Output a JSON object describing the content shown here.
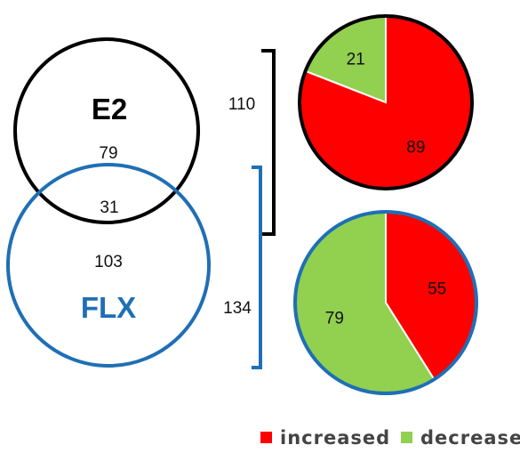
{
  "venn": {
    "set_a": {
      "label": "E2",
      "only": "79",
      "color": "#000000"
    },
    "set_b": {
      "label": "FLX",
      "only": "103",
      "color": "#1f6fb5"
    },
    "overlap": "31"
  },
  "brackets": {
    "e2_total": "110",
    "flx_total": "134"
  },
  "legend": {
    "increased": {
      "label": "increased",
      "color": "#ff0000"
    },
    "decreased": {
      "label": "decreased",
      "color": "#92d050"
    }
  },
  "chart_data": [
    {
      "type": "pie",
      "categories": [
        "increased",
        "decreased"
      ],
      "values": [
        89,
        21
      ],
      "labels": [
        "89",
        "21"
      ],
      "colors": [
        "#ff0000",
        "#92d050"
      ],
      "border_color": "#000000"
    },
    {
      "type": "pie",
      "categories": [
        "increased",
        "decreased"
      ],
      "values": [
        55,
        79
      ],
      "labels": [
        "55",
        "79"
      ],
      "colors": [
        "#ff0000",
        "#92d050"
      ],
      "border_color": "#1f6fb5"
    }
  ]
}
